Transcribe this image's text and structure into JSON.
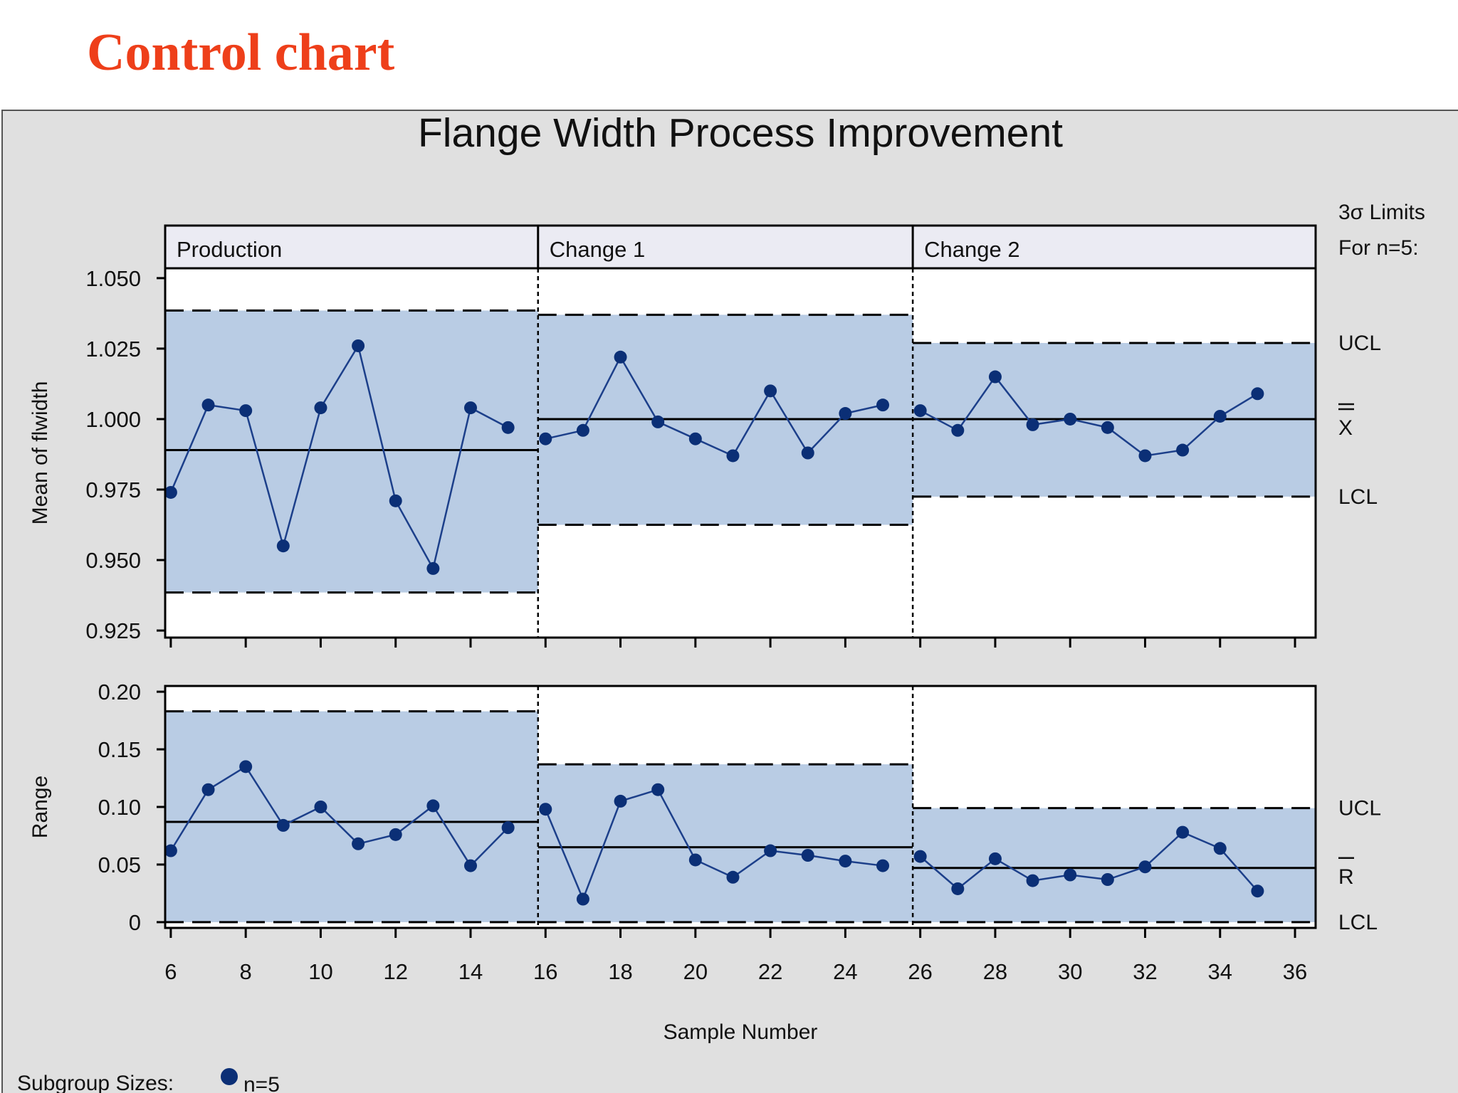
{
  "slide": {
    "title": "Control chart"
  },
  "chart_data": {
    "type": "line",
    "title": "Flange Width Process Improvement",
    "xlabel": "Sample Number",
    "x": [
      6,
      7,
      8,
      9,
      10,
      11,
      12,
      13,
      14,
      15,
      16,
      17,
      18,
      19,
      20,
      21,
      22,
      23,
      24,
      25,
      26,
      27,
      28,
      29,
      30,
      31,
      32,
      33,
      34,
      35
    ],
    "x_ticks": [
      6,
      8,
      10,
      12,
      14,
      16,
      18,
      20,
      22,
      24,
      26,
      28,
      30,
      32,
      34,
      36
    ],
    "xlim": [
      5.85,
      36.55
    ],
    "limits_heading": [
      "3σ Limits",
      "For n=5:"
    ],
    "phases": [
      {
        "name": "Production",
        "start": 5.85,
        "end": 15.8
      },
      {
        "name": "Change 1",
        "start": 15.8,
        "end": 25.8
      },
      {
        "name": "Change 2",
        "start": 25.8,
        "end": 36.55
      }
    ],
    "panels": [
      {
        "key": "mean",
        "ylabel": "Mean of flwidth",
        "ylim": [
          0.9225,
          1.0535
        ],
        "y_ticks": [
          {
            "v": 0.925,
            "label": "0.925"
          },
          {
            "v": 0.95,
            "label": "0.950"
          },
          {
            "v": 0.975,
            "label": "0.975"
          },
          {
            "v": 1.0,
            "label": "1.000"
          },
          {
            "v": 1.025,
            "label": "1.025"
          },
          {
            "v": 1.05,
            "label": "1.050"
          }
        ],
        "values": [
          0.974,
          1.005,
          1.003,
          0.955,
          1.004,
          1.026,
          0.971,
          0.947,
          1.004,
          0.997,
          0.993,
          0.996,
          1.022,
          0.999,
          0.993,
          0.987,
          1.01,
          0.988,
          1.002,
          1.005,
          1.003,
          0.996,
          1.015,
          0.998,
          1.0,
          0.997,
          0.987,
          0.989,
          1.001,
          1.009
        ],
        "limits": [
          {
            "ucl": 1.0385,
            "center": 0.989,
            "lcl": 0.9385
          },
          {
            "ucl": 1.037,
            "center": 1.0,
            "lcl": 0.9625
          },
          {
            "ucl": 1.027,
            "center": 1.0,
            "lcl": 0.9725
          }
        ],
        "limit_labels": {
          "ucl": "UCL",
          "center": "X",
          "lcl": "LCL"
        }
      },
      {
        "key": "range",
        "ylabel": "Range",
        "ylim": [
          -0.005,
          0.205
        ],
        "y_ticks": [
          {
            "v": 0,
            "label": "0"
          },
          {
            "v": 0.05,
            "label": "0.05"
          },
          {
            "v": 0.1,
            "label": "0.10"
          },
          {
            "v": 0.15,
            "label": "0.15"
          },
          {
            "v": 0.2,
            "label": "0.20"
          }
        ],
        "values": [
          0.062,
          0.115,
          0.135,
          0.084,
          0.1,
          0.068,
          0.076,
          0.101,
          0.049,
          0.082,
          0.098,
          0.02,
          0.105,
          0.115,
          0.054,
          0.039,
          0.062,
          0.058,
          0.053,
          0.049,
          0.057,
          0.029,
          0.055,
          0.036,
          0.041,
          0.037,
          0.048,
          0.078,
          0.064,
          0.027
        ],
        "limits": [
          {
            "ucl": 0.183,
            "center": 0.087,
            "lcl": 0
          },
          {
            "ucl": 0.137,
            "center": 0.065,
            "lcl": 0
          },
          {
            "ucl": 0.099,
            "center": 0.047,
            "lcl": 0
          }
        ],
        "limit_labels": {
          "ucl": "UCL",
          "center": "R",
          "lcl": "LCL"
        }
      }
    ],
    "colors": {
      "band": "#b9cce4",
      "marker": "#0b2f76",
      "line": "#1c3f8a",
      "frame_bg": "#e0e0e0",
      "strip_bg": "#ebebf3"
    },
    "footer": {
      "label": "Subgroup Sizes:",
      "entry": "n=5"
    }
  }
}
